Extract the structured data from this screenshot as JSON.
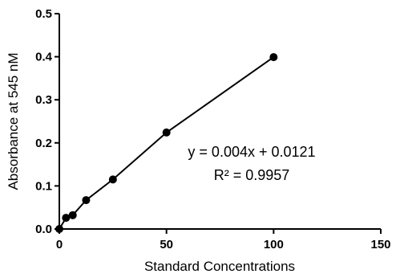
{
  "chart_data": {
    "type": "scatter",
    "title": "",
    "xlabel": "Standard Concentrations",
    "ylabel": "Absorbance at 545 nM",
    "xlim": [
      0,
      150
    ],
    "ylim": [
      0,
      0.5
    ],
    "x_ticks": [
      "0",
      "50",
      "100",
      "150"
    ],
    "y_ticks": [
      "0.0",
      "0.1",
      "0.2",
      "0.3",
      "0.4",
      "0.5"
    ],
    "grid": false,
    "legend": "none",
    "series": [
      {
        "x": [
          0,
          3.125,
          6.25,
          12.5,
          25,
          50,
          100
        ],
        "y": [
          0.0,
          0.026,
          0.032,
          0.067,
          0.115,
          0.224,
          0.399
        ],
        "marker": "circle",
        "line": "connected",
        "color": "#000000"
      }
    ],
    "annotations": {
      "equation": "y = 0.004x + 0.0121",
      "r_squared": "R² = 0.9957"
    }
  }
}
